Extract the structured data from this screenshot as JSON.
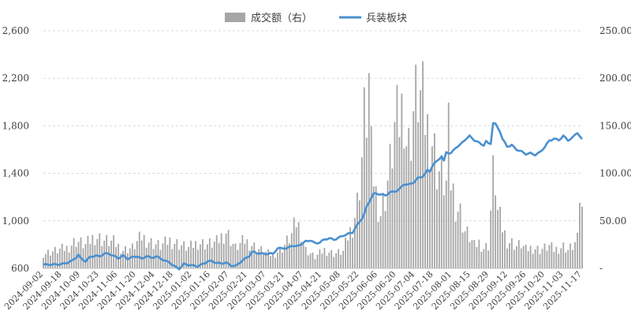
{
  "chart_data": {
    "type": "bar+line",
    "legend": {
      "placement": "top-center",
      "items": [
        {
          "label": "成交额（右）",
          "kind": "bar",
          "color": "#a6a6a6"
        },
        {
          "label": "兵装板块",
          "kind": "line",
          "color": "#4a90d0"
        }
      ]
    },
    "y_left": {
      "min": 600,
      "max": 2600,
      "ticks": [
        "600",
        "1,000",
        "1,400",
        "1,800",
        "2,200",
        "2,600"
      ],
      "tick_values": [
        600,
        1000,
        1400,
        1800,
        2200,
        2600
      ]
    },
    "y_right": {
      "min": 0,
      "max": 250,
      "ticks": [
        "-",
        "50.00",
        "100.00",
        "150.00",
        "200.00",
        "250.00"
      ],
      "tick_values": [
        0,
        50,
        100,
        150,
        200,
        250
      ]
    },
    "x_tick_labels": [
      "2024-09-02",
      "2024-09-18",
      "2024-10-09",
      "2024-10-23",
      "2024-11-06",
      "2024-11-20",
      "2024-12-04",
      "2024-12-18",
      "2025-01-02",
      "2025-01-16",
      "2025-02-07",
      "2025-02-21",
      "2025-03-07",
      "2025-03-21",
      "2025-04-07",
      "2025-04-21",
      "2025-05-08",
      "2025-05-22",
      "2025-06-06",
      "2025-06-20",
      "2025-07-04",
      "2025-07-18",
      "2025-08-01",
      "2025-08-15",
      "2025-08-29",
      "2025-09-12",
      "2025-09-26",
      "2025-10-20",
      "2025-11-03",
      "2025-11-17"
    ],
    "line_anchors": [
      [
        0,
        630
      ],
      [
        4,
        628
      ],
      [
        8,
        640
      ],
      [
        12,
        660
      ],
      [
        14,
        690
      ],
      [
        15,
        710
      ],
      [
        16,
        680
      ],
      [
        18,
        660
      ],
      [
        20,
        700
      ],
      [
        22,
        710
      ],
      [
        24,
        700
      ],
      [
        26,
        720
      ],
      [
        28,
        720
      ],
      [
        30,
        705
      ],
      [
        32,
        690
      ],
      [
        34,
        710
      ],
      [
        36,
        680
      ],
      [
        38,
        690
      ],
      [
        40,
        700
      ],
      [
        42,
        680
      ],
      [
        44,
        710
      ],
      [
        46,
        690
      ],
      [
        48,
        700
      ],
      [
        50,
        680
      ],
      [
        52,
        660
      ],
      [
        54,
        650
      ],
      [
        56,
        620
      ],
      [
        58,
        600
      ],
      [
        60,
        635
      ],
      [
        62,
        625
      ],
      [
        64,
        620
      ],
      [
        66,
        620
      ],
      [
        68,
        640
      ],
      [
        70,
        660
      ],
      [
        72,
        660
      ],
      [
        74,
        640
      ],
      [
        76,
        640
      ],
      [
        78,
        650
      ],
      [
        80,
        630
      ],
      [
        82,
        620
      ],
      [
        84,
        650
      ],
      [
        86,
        675
      ],
      [
        88,
        705
      ],
      [
        89,
        735
      ],
      [
        90,
        740
      ],
      [
        92,
        730
      ],
      [
        94,
        725
      ],
      [
        96,
        720
      ],
      [
        98,
        720
      ],
      [
        100,
        765
      ],
      [
        102,
        775
      ],
      [
        104,
        770
      ],
      [
        106,
        795
      ],
      [
        108,
        780
      ],
      [
        110,
        800
      ],
      [
        112,
        825
      ],
      [
        114,
        840
      ],
      [
        116,
        815
      ],
      [
        118,
        820
      ],
      [
        120,
        840
      ],
      [
        122,
        850
      ],
      [
        124,
        840
      ],
      [
        126,
        860
      ],
      [
        128,
        880
      ],
      [
        130,
        890
      ],
      [
        132,
        900
      ],
      [
        133,
        930
      ],
      [
        134,
        960
      ],
      [
        135,
        990
      ],
      [
        136,
        1020
      ],
      [
        137,
        1060
      ],
      [
        138,
        1120
      ],
      [
        139,
        1160
      ],
      [
        140,
        1200
      ],
      [
        141,
        1230
      ],
      [
        142,
        1230
      ],
      [
        144,
        1220
      ],
      [
        146,
        1210
      ],
      [
        148,
        1240
      ],
      [
        150,
        1250
      ],
      [
        152,
        1270
      ],
      [
        153,
        1290
      ],
      [
        154,
        1310
      ],
      [
        156,
        1300
      ],
      [
        158,
        1320
      ],
      [
        160,
        1360
      ],
      [
        162,
        1380
      ],
      [
        163,
        1400
      ],
      [
        164,
        1430
      ],
      [
        165,
        1420
      ],
      [
        166,
        1460
      ],
      [
        167,
        1480
      ],
      [
        168,
        1500
      ],
      [
        170,
        1540
      ],
      [
        171,
        1500
      ],
      [
        172,
        1580
      ],
      [
        174,
        1570
      ],
      [
        176,
        1620
      ],
      [
        178,
        1640
      ],
      [
        180,
        1680
      ],
      [
        182,
        1710
      ],
      [
        184,
        1680
      ],
      [
        186,
        1660
      ],
      [
        188,
        1640
      ],
      [
        189,
        1670
      ],
      [
        190,
        1650
      ],
      [
        191,
        1650
      ],
      [
        192,
        1820
      ],
      [
        193,
        1810
      ],
      [
        194,
        1780
      ],
      [
        195,
        1750
      ],
      [
        196,
        1690
      ],
      [
        198,
        1630
      ],
      [
        200,
        1640
      ],
      [
        202,
        1600
      ],
      [
        204,
        1580
      ],
      [
        206,
        1560
      ],
      [
        208,
        1570
      ],
      [
        210,
        1560
      ],
      [
        212,
        1580
      ],
      [
        214,
        1620
      ],
      [
        216,
        1670
      ],
      [
        218,
        1690
      ],
      [
        220,
        1680
      ],
      [
        222,
        1720
      ],
      [
        224,
        1680
      ],
      [
        226,
        1700
      ],
      [
        228,
        1740
      ],
      [
        230,
        1680
      ]
    ],
    "vol_anchors": [
      [
        0,
        16
      ],
      [
        10,
        22
      ],
      [
        14,
        30
      ],
      [
        18,
        25
      ],
      [
        22,
        35
      ],
      [
        26,
        30
      ],
      [
        30,
        28
      ],
      [
        34,
        20
      ],
      [
        38,
        22
      ],
      [
        42,
        34
      ],
      [
        46,
        28
      ],
      [
        50,
        24
      ],
      [
        54,
        30
      ],
      [
        58,
        26
      ],
      [
        62,
        22
      ],
      [
        66,
        28
      ],
      [
        70,
        26
      ],
      [
        74,
        28
      ],
      [
        78,
        40
      ],
      [
        82,
        22
      ],
      [
        86,
        30
      ],
      [
        90,
        24
      ],
      [
        94,
        18
      ],
      [
        98,
        14
      ],
      [
        102,
        22
      ],
      [
        106,
        36
      ],
      [
        108,
        50
      ],
      [
        110,
        40
      ],
      [
        112,
        20
      ],
      [
        116,
        12
      ],
      [
        120,
        20
      ],
      [
        124,
        16
      ],
      [
        128,
        18
      ],
      [
        130,
        34
      ],
      [
        132,
        46
      ],
      [
        134,
        70
      ],
      [
        136,
        120
      ],
      [
        137,
        160
      ],
      [
        138,
        170
      ],
      [
        139,
        200
      ],
      [
        140,
        120
      ],
      [
        142,
        80
      ],
      [
        144,
        60
      ],
      [
        146,
        80
      ],
      [
        148,
        110
      ],
      [
        150,
        150
      ],
      [
        152,
        160
      ],
      [
        153,
        170
      ],
      [
        154,
        180
      ],
      [
        155,
        140
      ],
      [
        156,
        130
      ],
      [
        158,
        170
      ],
      [
        160,
        190
      ],
      [
        162,
        175
      ],
      [
        164,
        150
      ],
      [
        166,
        140
      ],
      [
        168,
        110
      ],
      [
        170,
        100
      ],
      [
        172,
        90
      ],
      [
        173,
        140
      ],
      [
        174,
        95
      ],
      [
        176,
        70
      ],
      [
        178,
        60
      ],
      [
        180,
        40
      ],
      [
        182,
        34
      ],
      [
        184,
        24
      ],
      [
        186,
        28
      ],
      [
        188,
        22
      ],
      [
        190,
        25
      ],
      [
        192,
        100
      ],
      [
        193,
        95
      ],
      [
        194,
        60
      ],
      [
        196,
        44
      ],
      [
        198,
        30
      ],
      [
        200,
        28
      ],
      [
        202,
        24
      ],
      [
        204,
        26
      ],
      [
        206,
        20
      ],
      [
        208,
        22
      ],
      [
        210,
        22
      ],
      [
        212,
        20
      ],
      [
        214,
        22
      ],
      [
        216,
        24
      ],
      [
        218,
        20
      ],
      [
        220,
        22
      ],
      [
        222,
        24
      ],
      [
        224,
        20
      ],
      [
        226,
        24
      ],
      [
        228,
        30
      ],
      [
        229,
        80
      ],
      [
        230,
        60
      ]
    ]
  }
}
